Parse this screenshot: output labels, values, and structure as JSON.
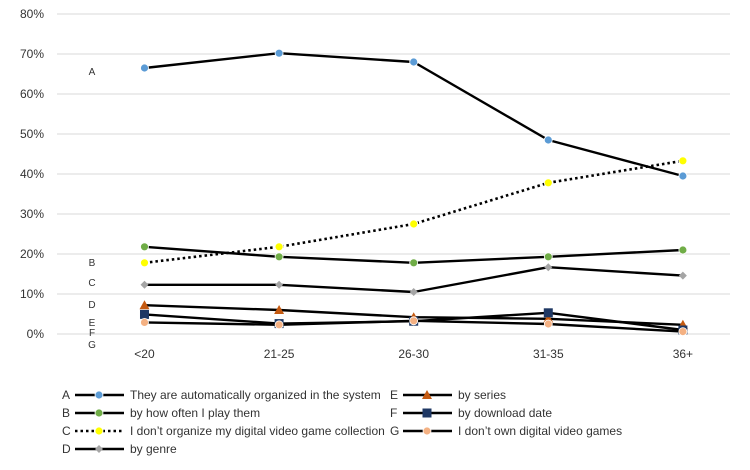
{
  "chart_data": {
    "type": "line",
    "categories": [
      "<20",
      "21-25",
      "26-30",
      "31-35",
      "36+"
    ],
    "ylim": [
      0,
      80
    ],
    "yticks": [
      0,
      10,
      20,
      30,
      40,
      50,
      60,
      70,
      80
    ],
    "ytick_labels": [
      "0%",
      "10%",
      "20%",
      "30%",
      "40%",
      "50%",
      "60%",
      "70%",
      "80%"
    ],
    "grid": true,
    "legend_position": "bottom",
    "series": [
      {
        "letter": "A",
        "name": "They are automatically organized in the system",
        "values": [
          66.5,
          70.2,
          68.0,
          48.5,
          39.5
        ],
        "color": "#000000",
        "dashed": false,
        "marker": "circle",
        "marker_color": "#5b9bd5"
      },
      {
        "letter": "B",
        "name": "by how often I play them",
        "values": [
          21.8,
          19.3,
          17.8,
          19.3,
          21.0
        ],
        "color": "#000000",
        "dashed": false,
        "marker": "circle",
        "marker_color": "#70ad47"
      },
      {
        "letter": "C",
        "name": "I don’t organize my digital video game collection",
        "values": [
          17.8,
          21.8,
          27.5,
          37.8,
          43.3
        ],
        "color": "#000000",
        "dashed": true,
        "marker": "circle",
        "marker_color": "#ffff00"
      },
      {
        "letter": "D",
        "name": "by genre",
        "values": [
          12.3,
          12.3,
          10.5,
          16.7,
          14.6
        ],
        "color": "#000000",
        "dashed": false,
        "marker": "diamond",
        "marker_color": "#a5a5a5"
      },
      {
        "letter": "E",
        "name": "by series",
        "values": [
          7.2,
          6.0,
          4.2,
          3.8,
          2.3
        ],
        "color": "#000000",
        "dashed": false,
        "marker": "triangle",
        "marker_color": "#c55a11"
      },
      {
        "letter": "F",
        "name": "by download date",
        "values": [
          4.9,
          2.6,
          3.2,
          5.3,
          1.0
        ],
        "color": "#000000",
        "dashed": false,
        "marker": "square",
        "marker_color": "#1f3864"
      },
      {
        "letter": "G",
        "name": "I don’t own digital video games",
        "values": [
          2.9,
          2.3,
          3.3,
          2.5,
          0.6
        ],
        "color": "#000000",
        "dashed": false,
        "marker": "circle",
        "marker_color": "#f4b183"
      }
    ],
    "line_labels": [
      "A",
      "B",
      "C",
      "D",
      "E",
      "F",
      "G"
    ]
  }
}
